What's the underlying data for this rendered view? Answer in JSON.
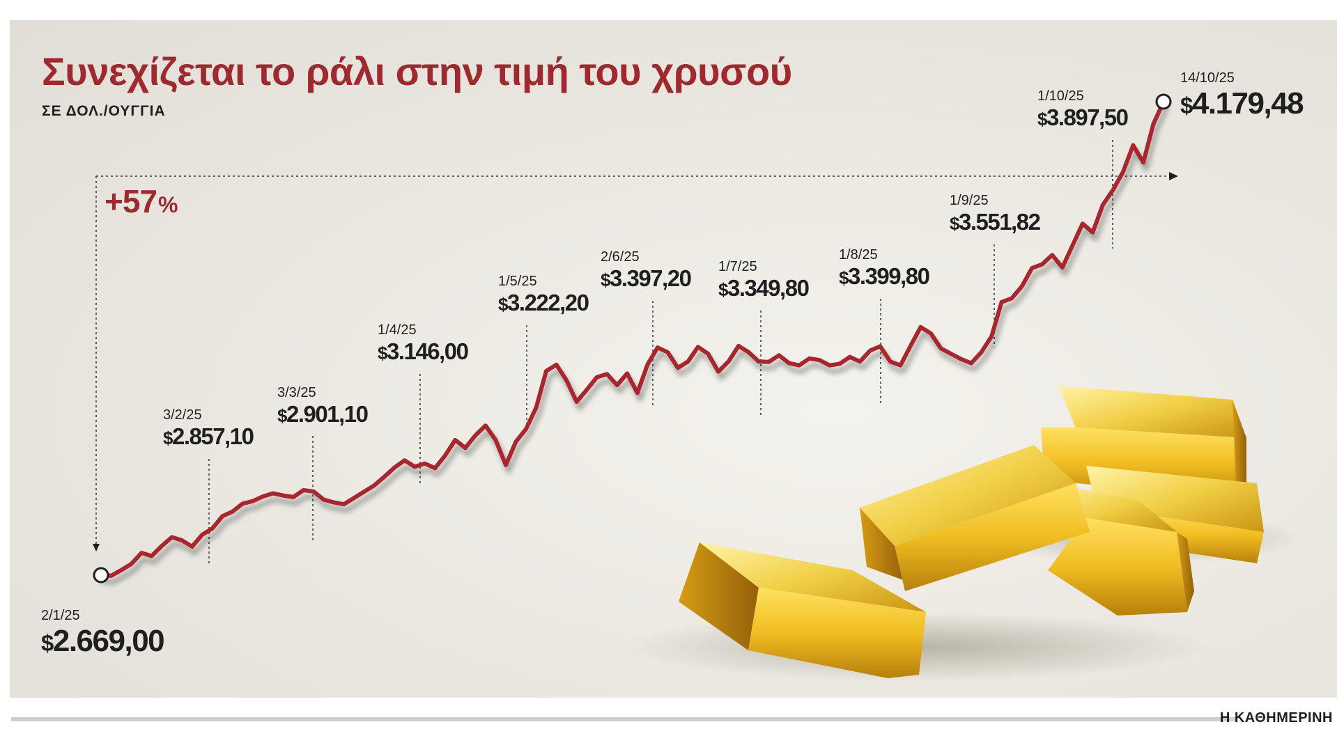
{
  "header": {
    "title": "Συνεχίζεται το ράλι στην τιμή του χρυσού",
    "subtitle": "ΣΕ ΔΟΛ./ΟΥΓΓΙΑ"
  },
  "change": {
    "value": "+57",
    "unit": "%"
  },
  "brand": "Η ΚΑΘΗΜΕΡΙΝΗ",
  "colors": {
    "line": "#a8262d",
    "title": "#9e2a2f",
    "text": "#1f1f1f",
    "gold": "#d9a71e"
  },
  "chart_data": {
    "type": "line",
    "title": "Συνεχίζεται το ράλι στην τιμή του χρυσού",
    "ylabel": "ΣΕ ΔΟΛ./ΟΥΓΓΙΑ",
    "x_start": "2/1/25",
    "x_end": "14/10/25",
    "ylim": [
      2500,
      4300
    ],
    "grid": false,
    "series": [
      {
        "values": [
          2669,
          2667,
          2685,
          2705,
          2740,
          2730,
          2762,
          2790,
          2780,
          2760,
          2798,
          2818,
          2857,
          2872,
          2897,
          2905,
          2920,
          2930,
          2923,
          2918,
          2940,
          2936,
          2910,
          2901,
          2895,
          2915,
          2935,
          2955,
          2983,
          3012,
          3035,
          3015,
          3025,
          3010,
          3050,
          3100,
          3075,
          3115,
          3146,
          3100,
          3020,
          3095,
          3135,
          3203,
          3320,
          3340,
          3290,
          3222,
          3260,
          3300,
          3310,
          3275,
          3312,
          3250,
          3340,
          3395,
          3380,
          3330,
          3350,
          3397,
          3375,
          3318,
          3350,
          3400,
          3380,
          3350,
          3349,
          3370,
          3345,
          3338,
          3360,
          3355,
          3338,
          3343,
          3365,
          3350,
          3385,
          3399,
          3350,
          3338,
          3400,
          3460,
          3440,
          3392,
          3375,
          3358,
          3345,
          3380,
          3430,
          3540,
          3552,
          3590,
          3648,
          3660,
          3690,
          3650,
          3720,
          3790,
          3762,
          3850,
          3897,
          3955,
          4040,
          3985,
          4108,
          4179
        ]
      }
    ],
    "annotations": [
      {
        "date": "2/1/25",
        "value": "2.669,00",
        "currency": "$"
      },
      {
        "date": "3/2/25",
        "value": "2.857,10",
        "currency": "$"
      },
      {
        "date": "3/3/25",
        "value": "2.901,10",
        "currency": "$"
      },
      {
        "date": "1/4/25",
        "value": "3.146,00",
        "currency": "$"
      },
      {
        "date": "1/5/25",
        "value": "3.222,20",
        "currency": "$"
      },
      {
        "date": "2/6/25",
        "value": "3.397,20",
        "currency": "$"
      },
      {
        "date": "1/7/25",
        "value": "3.349,80",
        "currency": "$"
      },
      {
        "date": "1/8/25",
        "value": "3.399,80",
        "currency": "$"
      },
      {
        "date": "1/9/25",
        "value": "3.551,82",
        "currency": "$"
      },
      {
        "date": "1/10/25",
        "value": "3.897,50",
        "currency": "$"
      },
      {
        "date": "14/10/25",
        "value": "4.179,48",
        "currency": "$"
      }
    ]
  }
}
